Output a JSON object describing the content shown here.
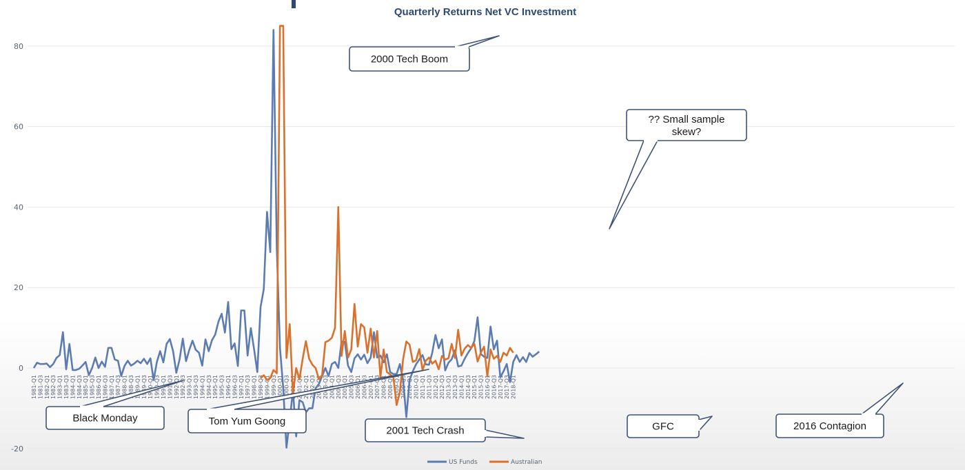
{
  "chart_data": {
    "type": "line",
    "title": "Quarterly Returns Net VC Investment",
    "xlabel": "",
    "ylabel": "",
    "ylim": [
      -20,
      85
    ],
    "yticks": [
      -20,
      0,
      20,
      40,
      60,
      80
    ],
    "grid": true,
    "legend_position": "bottom",
    "x_tick_labels": [
      "1981-Q1",
      "1981-Q3",
      "1982-Q1",
      "1982-Q3",
      "1983-Q1",
      "1983-Q3",
      "1984-Q1",
      "1984-Q3",
      "1985-Q1",
      "1985-Q3",
      "1986-Q1",
      "1986-Q3",
      "1987-Q1",
      "1987-Q3",
      "1988-Q1",
      "1988-Q3",
      "1989-Q1",
      "1989-Q3",
      "1990-Q1",
      "1990-Q3",
      "1991-Q1",
      "1991-Q3",
      "1992-Q1",
      "1992-Q3",
      "1993-Q1",
      "1993-Q3",
      "1994-Q1",
      "1994-Q3",
      "1995-Q1",
      "1995-Q3",
      "1996-Q1",
      "1996-Q3",
      "1997-Q1",
      "1997-Q3",
      "1998-Q1",
      "1998-Q3",
      "1999-Q1",
      "1999-Q3",
      "2000-Q1",
      "2000-Q3",
      "2001-Q1",
      "2001-Q3",
      "2002-Q1",
      "2002-Q3",
      "2003-Q1",
      "2003-Q3",
      "2004-Q1",
      "2004-Q3",
      "2005-Q1",
      "2005-Q3",
      "2006-Q1",
      "2006-Q3",
      "2007-Q1",
      "2007-Q3",
      "2008-Q1",
      "2008-Q3",
      "2009-Q1",
      "2009-Q3",
      "2010-Q1",
      "2010-Q3",
      "2011-Q1",
      "2011-Q3",
      "2012-Q1",
      "2012-Q3",
      "2013-Q1",
      "2013-Q3",
      "2014-Q1",
      "2014-Q3",
      "2015-Q1",
      "2015-Q3",
      "2016-Q1",
      "2016-Q3",
      "2017-Q1",
      "2017-Q3",
      "2018-Q1"
    ],
    "series": [
      {
        "name": "US Funds",
        "color": "#5b7bb1",
        "start_quarter": 0,
        "values": [
          0,
          1.3,
          1,
          1,
          1.1,
          0.2,
          1,
          2.5,
          3.2,
          8.9,
          -0.3,
          6,
          -0.5,
          -0.5,
          -0.2,
          0.6,
          1.5,
          -1.8,
          0,
          2.6,
          0,
          1.6,
          0.3,
          5,
          5,
          2.1,
          1.8,
          -2,
          0.5,
          1.8,
          0.6,
          1.1,
          1.8,
          1.2,
          2.3,
          1,
          2.4,
          -3,
          1.5,
          4.2,
          1.4,
          6,
          7.2,
          4.2,
          -1.2,
          2.1,
          7.3,
          1.7,
          4.5,
          6.8,
          4.5,
          3.8,
          0.6,
          7.1,
          4.2,
          6.9,
          8.3,
          11.5,
          13.5,
          8.8,
          16.4,
          4.7,
          6.1,
          0.5,
          14.3,
          14.3,
          3.1,
          9.9,
          4.7,
          -1,
          15.1,
          19.6,
          38.8,
          28.8,
          84,
          30,
          5,
          -5,
          -19.8,
          -13,
          -5.5,
          -17,
          -8,
          -8.5,
          -11,
          -10,
          -10,
          -5,
          -4,
          -2,
          0,
          -2,
          1,
          1.5,
          0,
          6.6,
          6.5,
          0.6,
          -1,
          2.4,
          3.4,
          2.1,
          3.3,
          1.2,
          2.6,
          8.9,
          2.6,
          3.1,
          1.4,
          3.4,
          -1,
          -1.5,
          -1.5,
          1,
          -3,
          -12.2,
          -3,
          -0.8,
          0.9,
          2.1,
          3.2,
          0.9,
          0.8,
          3.8,
          8.2,
          4.9,
          7.1,
          -0.6,
          1.3,
          2.2,
          4.4,
          0.4,
          0.6,
          2.3,
          3.7,
          4.9,
          6.7,
          12.6,
          3.5,
          2.8,
          2.5,
          10.3,
          4.6,
          6.8,
          -2.3,
          -0.8,
          1,
          -3.5,
          1.5,
          3.2,
          1.5,
          2.7,
          1.5,
          3.7,
          2.8,
          3.4,
          4.1
        ]
      },
      {
        "name": "Australian",
        "color": "#d9702b",
        "start_quarter": 70,
        "values": [
          -2.5,
          -1.8,
          -3,
          -2.5,
          -0.5,
          -1.3,
          85,
          85,
          2.5,
          10.9,
          -6.5,
          0,
          -2.8,
          2.3,
          6.7,
          2.3,
          0.8,
          0,
          -2.8,
          -1.8,
          6.4,
          6.8,
          7.5,
          10,
          40,
          3,
          9.2,
          2.6,
          4.6,
          15.9,
          5.3,
          10.9,
          10.1,
          3.8,
          9.8,
          2.6,
          9.2,
          -2.3,
          4.6,
          -1,
          -1.6,
          -2.3,
          -9.2,
          -6.1,
          2.2,
          6.6,
          5.8,
          1.5,
          1.9,
          4.7,
          -0.5,
          1.8,
          2.6,
          1.1,
          1.8,
          -0.3,
          3,
          2.1,
          2.4,
          6,
          2.5,
          9.5,
          3.1,
          4.8,
          5.7,
          5,
          6,
          1.6,
          3.8,
          5.3,
          -2.1,
          4.6,
          2.3,
          3,
          1.5,
          3.8,
          3.1,
          5,
          3.8
        ]
      }
    ],
    "annotations": [
      {
        "text": "2000 Tech Boom"
      },
      {
        "text": "?? Small sample skew?"
      },
      {
        "text": "Black Monday"
      },
      {
        "text": "Tom Yum Goong"
      },
      {
        "text": "2001 Tech Crash"
      },
      {
        "text": "GFC"
      },
      {
        "text": "2016 Contagion"
      }
    ]
  }
}
